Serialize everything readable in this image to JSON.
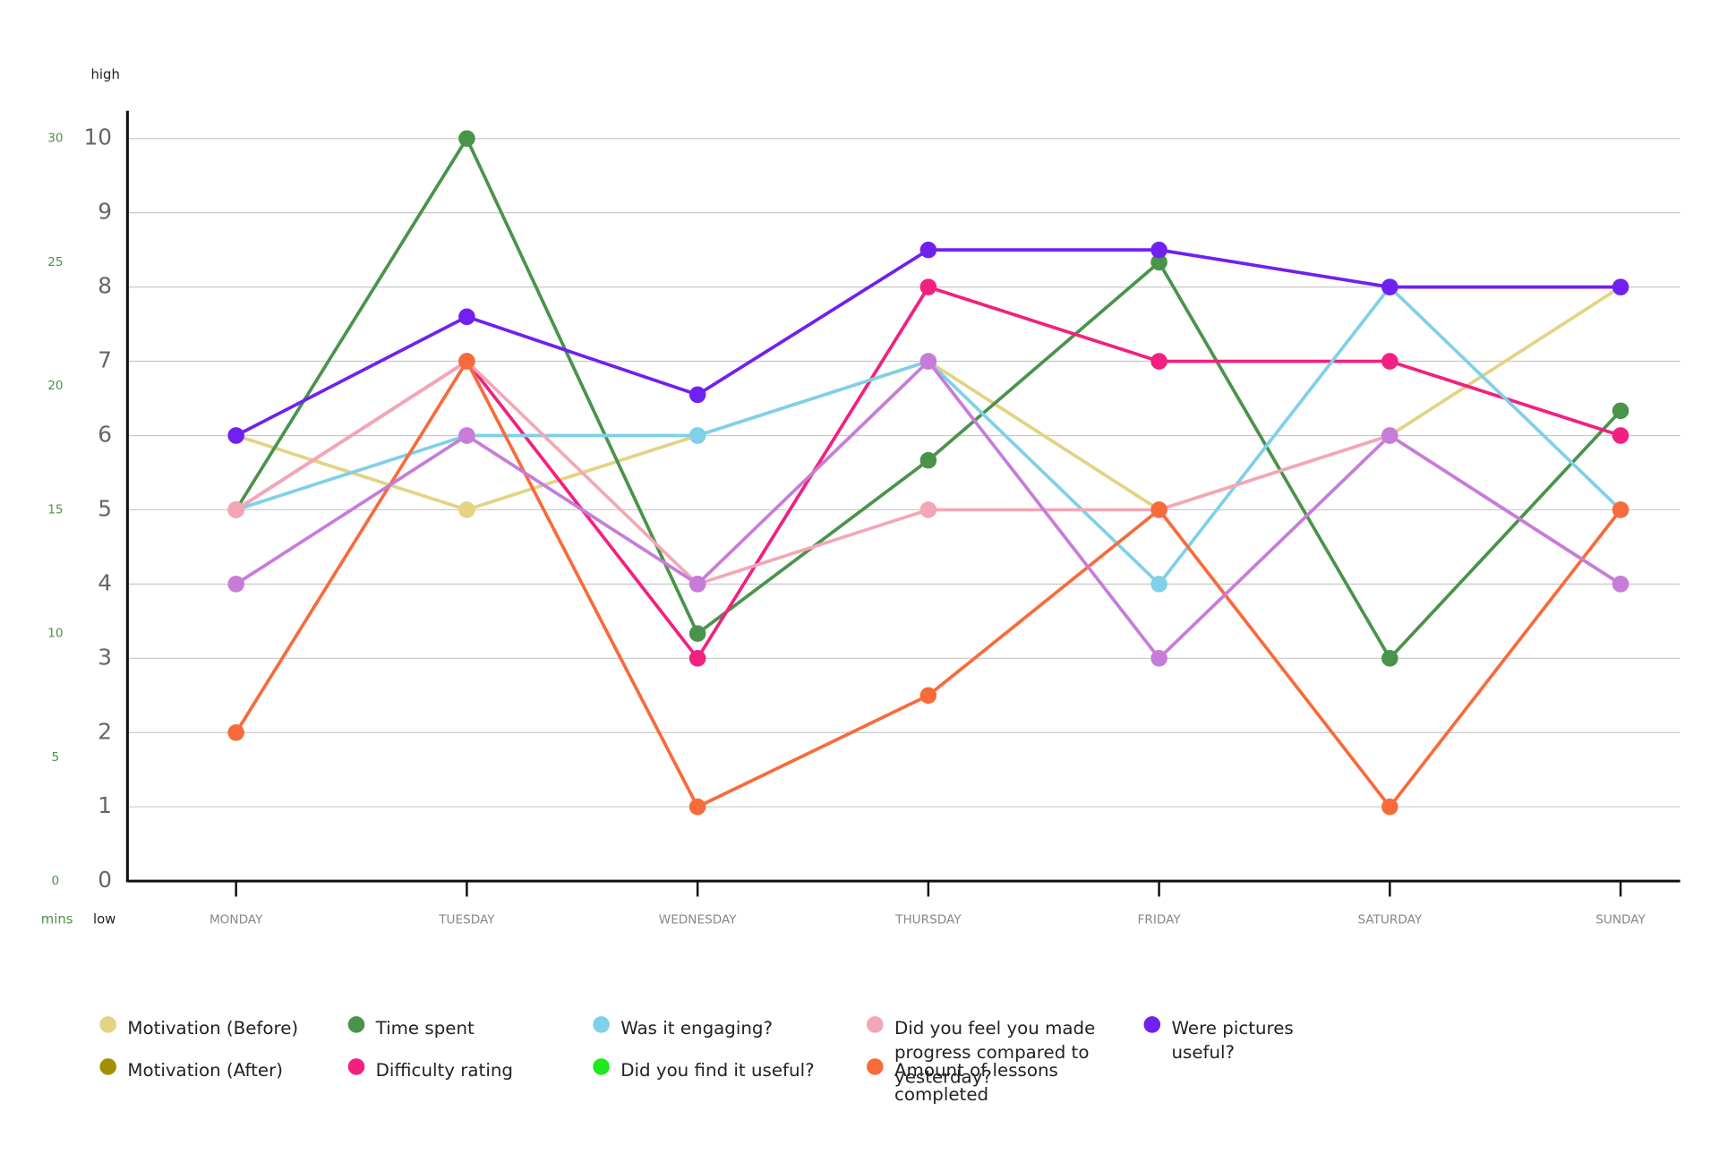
{
  "chart_data": {
    "type": "line",
    "y_label_top": "high",
    "y_label_bottom": "low",
    "y2_label": "mins",
    "categories": [
      "MONDAY",
      "TUESDAY",
      "WEDNESDAY",
      "THURSDAY",
      "FRIDAY",
      "SATURDAY",
      "SUNDAY"
    ],
    "ylim": [
      0,
      10
    ],
    "yticks": [
      0,
      1,
      2,
      3,
      4,
      5,
      6,
      7,
      8,
      9,
      10
    ],
    "y2lim": [
      0,
      30
    ],
    "y2ticks": [
      0,
      5,
      10,
      15,
      20,
      25,
      30
    ],
    "grid": true,
    "series": [
      {
        "name": "Motivation (Before)",
        "color": "#e3d383",
        "values": [
          6,
          5,
          6,
          7,
          5,
          6,
          8
        ]
      },
      {
        "name": "Motivation (After)",
        "color": "#a38f00",
        "values": [
          null,
          null,
          null,
          null,
          null,
          null,
          null
        ]
      },
      {
        "name": "Time spent",
        "color": "#4a934a",
        "axis": "y2",
        "values": [
          15,
          30,
          10,
          17,
          25,
          9,
          19
        ]
      },
      {
        "name": "Difficulty rating",
        "color": "#f2207f",
        "values": [
          5,
          7,
          3,
          8,
          7,
          7,
          6
        ]
      },
      {
        "name": "Was it engaging?",
        "color": "#7fd0e8",
        "values": [
          5,
          6,
          6,
          7,
          4,
          8,
          5
        ]
      },
      {
        "name": "Did you find it useful?",
        "color": "#1ee81e",
        "values": [
          null,
          null,
          null,
          null,
          null,
          null,
          null
        ]
      },
      {
        "name": "Did you feel you made progress compared to yesterday?",
        "color": "#f3a7b6",
        "values": [
          5,
          7,
          4,
          5,
          5,
          6,
          4
        ]
      },
      {
        "name": "Amount of lessons completed",
        "color": "#f76b3b",
        "values": [
          2,
          7,
          1,
          2.5,
          5,
          1,
          5
        ]
      },
      {
        "name": "Were pictures useful?",
        "color": "#7020f0",
        "values": [
          6,
          7.6,
          6.55,
          8.5,
          8.5,
          8,
          8
        ]
      },
      {
        "color": "#c77cd9",
        "values": [
          4,
          6,
          4,
          7,
          3,
          6,
          4
        ]
      }
    ]
  }
}
